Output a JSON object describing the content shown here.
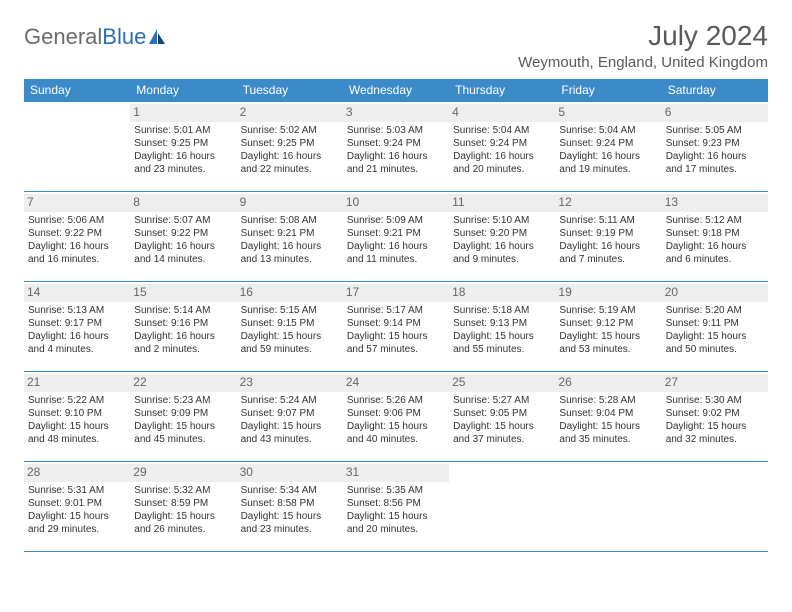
{
  "brand": {
    "name_gray": "General",
    "name_blue": "Blue"
  },
  "title": "July 2024",
  "location": "Weymouth, England, United Kingdom",
  "colors": {
    "header_bg": "#3b8bc9",
    "header_text": "#ffffff",
    "daynum_bg": "#eeeeee",
    "border": "#3b8bc9",
    "text": "#333333",
    "logo_gray": "#6b6b6b",
    "logo_blue": "#2d6fb5"
  },
  "weekdays": [
    "Sunday",
    "Monday",
    "Tuesday",
    "Wednesday",
    "Thursday",
    "Friday",
    "Saturday"
  ],
  "weeks": [
    [
      null,
      {
        "n": "1",
        "sunrise": "Sunrise: 5:01 AM",
        "sunset": "Sunset: 9:25 PM",
        "daylight": "Daylight: 16 hours and 23 minutes."
      },
      {
        "n": "2",
        "sunrise": "Sunrise: 5:02 AM",
        "sunset": "Sunset: 9:25 PM",
        "daylight": "Daylight: 16 hours and 22 minutes."
      },
      {
        "n": "3",
        "sunrise": "Sunrise: 5:03 AM",
        "sunset": "Sunset: 9:24 PM",
        "daylight": "Daylight: 16 hours and 21 minutes."
      },
      {
        "n": "4",
        "sunrise": "Sunrise: 5:04 AM",
        "sunset": "Sunset: 9:24 PM",
        "daylight": "Daylight: 16 hours and 20 minutes."
      },
      {
        "n": "5",
        "sunrise": "Sunrise: 5:04 AM",
        "sunset": "Sunset: 9:24 PM",
        "daylight": "Daylight: 16 hours and 19 minutes."
      },
      {
        "n": "6",
        "sunrise": "Sunrise: 5:05 AM",
        "sunset": "Sunset: 9:23 PM",
        "daylight": "Daylight: 16 hours and 17 minutes."
      }
    ],
    [
      {
        "n": "7",
        "sunrise": "Sunrise: 5:06 AM",
        "sunset": "Sunset: 9:22 PM",
        "daylight": "Daylight: 16 hours and 16 minutes."
      },
      {
        "n": "8",
        "sunrise": "Sunrise: 5:07 AM",
        "sunset": "Sunset: 9:22 PM",
        "daylight": "Daylight: 16 hours and 14 minutes."
      },
      {
        "n": "9",
        "sunrise": "Sunrise: 5:08 AM",
        "sunset": "Sunset: 9:21 PM",
        "daylight": "Daylight: 16 hours and 13 minutes."
      },
      {
        "n": "10",
        "sunrise": "Sunrise: 5:09 AM",
        "sunset": "Sunset: 9:21 PM",
        "daylight": "Daylight: 16 hours and 11 minutes."
      },
      {
        "n": "11",
        "sunrise": "Sunrise: 5:10 AM",
        "sunset": "Sunset: 9:20 PM",
        "daylight": "Daylight: 16 hours and 9 minutes."
      },
      {
        "n": "12",
        "sunrise": "Sunrise: 5:11 AM",
        "sunset": "Sunset: 9:19 PM",
        "daylight": "Daylight: 16 hours and 7 minutes."
      },
      {
        "n": "13",
        "sunrise": "Sunrise: 5:12 AM",
        "sunset": "Sunset: 9:18 PM",
        "daylight": "Daylight: 16 hours and 6 minutes."
      }
    ],
    [
      {
        "n": "14",
        "sunrise": "Sunrise: 5:13 AM",
        "sunset": "Sunset: 9:17 PM",
        "daylight": "Daylight: 16 hours and 4 minutes."
      },
      {
        "n": "15",
        "sunrise": "Sunrise: 5:14 AM",
        "sunset": "Sunset: 9:16 PM",
        "daylight": "Daylight: 16 hours and 2 minutes."
      },
      {
        "n": "16",
        "sunrise": "Sunrise: 5:15 AM",
        "sunset": "Sunset: 9:15 PM",
        "daylight": "Daylight: 15 hours and 59 minutes."
      },
      {
        "n": "17",
        "sunrise": "Sunrise: 5:17 AM",
        "sunset": "Sunset: 9:14 PM",
        "daylight": "Daylight: 15 hours and 57 minutes."
      },
      {
        "n": "18",
        "sunrise": "Sunrise: 5:18 AM",
        "sunset": "Sunset: 9:13 PM",
        "daylight": "Daylight: 15 hours and 55 minutes."
      },
      {
        "n": "19",
        "sunrise": "Sunrise: 5:19 AM",
        "sunset": "Sunset: 9:12 PM",
        "daylight": "Daylight: 15 hours and 53 minutes."
      },
      {
        "n": "20",
        "sunrise": "Sunrise: 5:20 AM",
        "sunset": "Sunset: 9:11 PM",
        "daylight": "Daylight: 15 hours and 50 minutes."
      }
    ],
    [
      {
        "n": "21",
        "sunrise": "Sunrise: 5:22 AM",
        "sunset": "Sunset: 9:10 PM",
        "daylight": "Daylight: 15 hours and 48 minutes."
      },
      {
        "n": "22",
        "sunrise": "Sunrise: 5:23 AM",
        "sunset": "Sunset: 9:09 PM",
        "daylight": "Daylight: 15 hours and 45 minutes."
      },
      {
        "n": "23",
        "sunrise": "Sunrise: 5:24 AM",
        "sunset": "Sunset: 9:07 PM",
        "daylight": "Daylight: 15 hours and 43 minutes."
      },
      {
        "n": "24",
        "sunrise": "Sunrise: 5:26 AM",
        "sunset": "Sunset: 9:06 PM",
        "daylight": "Daylight: 15 hours and 40 minutes."
      },
      {
        "n": "25",
        "sunrise": "Sunrise: 5:27 AM",
        "sunset": "Sunset: 9:05 PM",
        "daylight": "Daylight: 15 hours and 37 minutes."
      },
      {
        "n": "26",
        "sunrise": "Sunrise: 5:28 AM",
        "sunset": "Sunset: 9:04 PM",
        "daylight": "Daylight: 15 hours and 35 minutes."
      },
      {
        "n": "27",
        "sunrise": "Sunrise: 5:30 AM",
        "sunset": "Sunset: 9:02 PM",
        "daylight": "Daylight: 15 hours and 32 minutes."
      }
    ],
    [
      {
        "n": "28",
        "sunrise": "Sunrise: 5:31 AM",
        "sunset": "Sunset: 9:01 PM",
        "daylight": "Daylight: 15 hours and 29 minutes."
      },
      {
        "n": "29",
        "sunrise": "Sunrise: 5:32 AM",
        "sunset": "Sunset: 8:59 PM",
        "daylight": "Daylight: 15 hours and 26 minutes."
      },
      {
        "n": "30",
        "sunrise": "Sunrise: 5:34 AM",
        "sunset": "Sunset: 8:58 PM",
        "daylight": "Daylight: 15 hours and 23 minutes."
      },
      {
        "n": "31",
        "sunrise": "Sunrise: 5:35 AM",
        "sunset": "Sunset: 8:56 PM",
        "daylight": "Daylight: 15 hours and 20 minutes."
      },
      null,
      null,
      null
    ]
  ]
}
